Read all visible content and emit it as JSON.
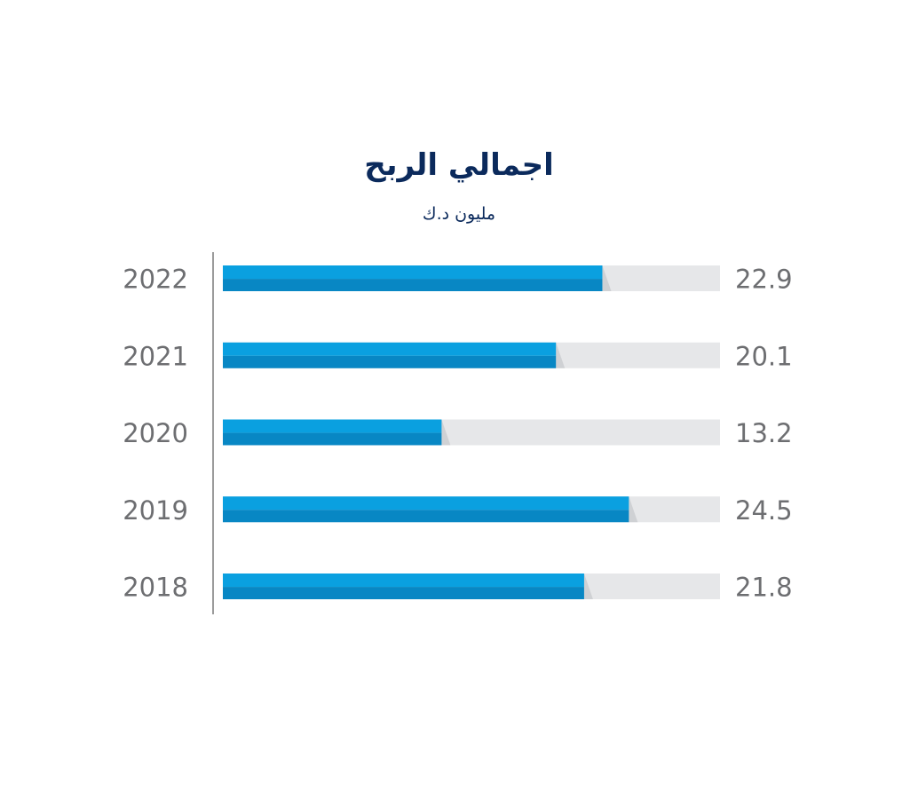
{
  "chart_data": {
    "type": "bar",
    "orientation": "horizontal",
    "title": "اجمالي الربح",
    "subtitle": "مليون د.ك",
    "categories": [
      "2022",
      "2021",
      "2020",
      "2019",
      "2018"
    ],
    "values": [
      22.9,
      20.1,
      13.2,
      24.5,
      21.8
    ],
    "value_labels": [
      "22.9",
      "20.1",
      "13.2",
      "24.5",
      "21.8"
    ],
    "xlim": [
      0,
      30
    ],
    "grid": false,
    "legend": "none"
  },
  "colors": {
    "bar_top": "#0aa0e0",
    "bar_bottom": "#0887c4",
    "track": "#e6e7e9",
    "axis": "#7a7a7a",
    "title": "#0b2a5c",
    "labels": "#6d6e71"
  }
}
